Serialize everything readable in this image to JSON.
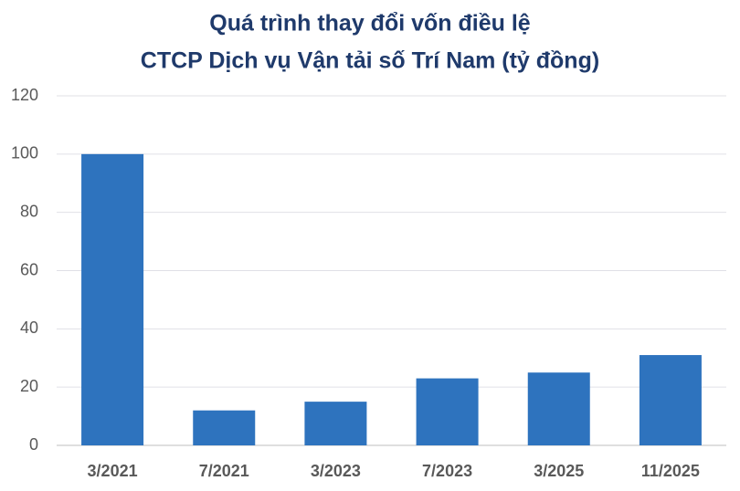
{
  "chart_data": {
    "type": "bar",
    "title": [
      "Quá trình thay đổi vốn điều lệ",
      "CTCP Dịch vụ Vận tải số Trí Nam (tỷ đồng)"
    ],
    "categories": [
      "3/2021",
      "7/2021",
      "3/2023",
      "7/2023",
      "3/2025",
      "11/2025"
    ],
    "values": [
      100,
      12,
      15,
      23,
      25,
      31
    ],
    "color": "#2e73be",
    "ylim": [
      0,
      120
    ],
    "yticks": [
      0,
      20,
      40,
      60,
      80,
      100,
      120
    ],
    "grid": true
  }
}
